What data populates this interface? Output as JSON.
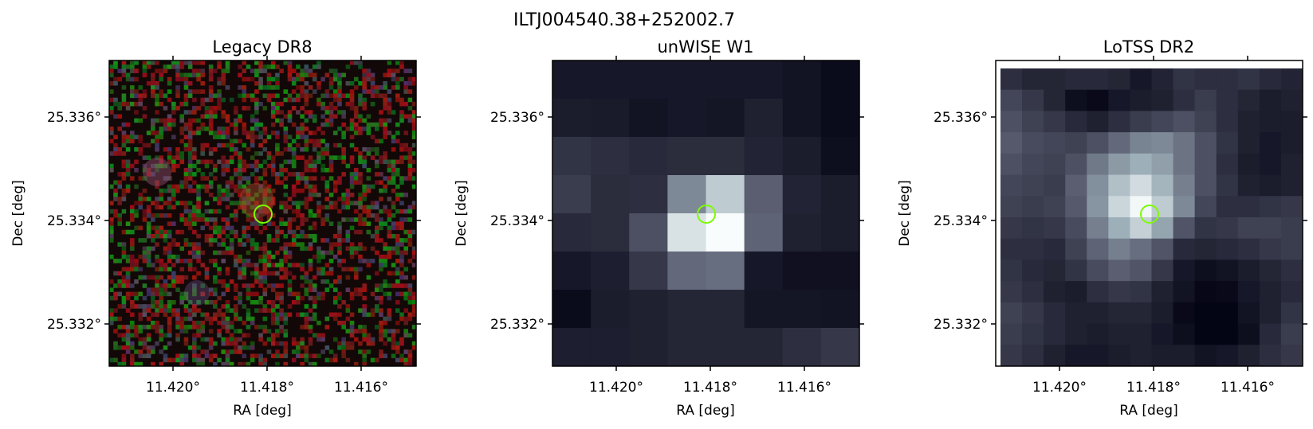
{
  "figure": {
    "title": "ILTJ004540.38+252002.7",
    "marker_color": "#7cfc00"
  },
  "panels": [
    {
      "title": "Legacy DR8",
      "xlabel": "RA [deg]",
      "ylabel": "Dec [deg]",
      "xticks": [
        "11.420°",
        "11.418°",
        "11.416°"
      ],
      "yticks": [
        "25.336°",
        "25.334°",
        "25.332°"
      ],
      "image_kind": "noise-rgb"
    },
    {
      "title": "unWISE W1",
      "xlabel": "RA [deg]",
      "ylabel": "Dec [deg]",
      "xticks": [
        "11.420°",
        "11.418°",
        "11.416°"
      ],
      "yticks": [
        "25.336°",
        "25.334°",
        "25.332°"
      ],
      "image_kind": "grid",
      "grid": [
        [
          0.1,
          0.1,
          0.1,
          0.1,
          0.1,
          0.1,
          0.08,
          0.05
        ],
        [
          0.12,
          0.11,
          0.08,
          0.1,
          0.09,
          0.14,
          0.08,
          0.05
        ],
        [
          0.22,
          0.2,
          0.18,
          0.19,
          0.19,
          0.15,
          0.12,
          0.06
        ],
        [
          0.26,
          0.19,
          0.2,
          0.56,
          0.8,
          0.4,
          0.15,
          0.12
        ],
        [
          0.18,
          0.19,
          0.34,
          0.88,
          0.98,
          0.42,
          0.14,
          0.12
        ],
        [
          0.1,
          0.13,
          0.24,
          0.44,
          0.46,
          0.1,
          0.07,
          0.07
        ],
        [
          0.05,
          0.12,
          0.14,
          0.16,
          0.16,
          0.09,
          0.09,
          0.08
        ],
        [
          0.13,
          0.13,
          0.14,
          0.16,
          0.16,
          0.16,
          0.2,
          0.24
        ]
      ]
    },
    {
      "title": "LoTSS DR2",
      "xlabel": "RA [deg]",
      "ylabel": "Dec [deg]",
      "xticks": [
        "11.420°",
        "11.418°",
        "11.416°"
      ],
      "yticks": [
        "25.336°",
        "25.334°",
        "25.332°"
      ],
      "image_kind": "grid",
      "grid": [
        [
          0.2,
          0.16,
          0.16,
          0.18,
          0.18,
          0.16,
          0.1,
          0.15,
          0.22,
          0.2,
          0.2,
          0.22,
          0.18,
          0.15
        ],
        [
          0.3,
          0.24,
          0.16,
          0.06,
          0.04,
          0.1,
          0.12,
          0.14,
          0.2,
          0.26,
          0.2,
          0.16,
          0.12,
          0.14
        ],
        [
          0.34,
          0.28,
          0.24,
          0.18,
          0.14,
          0.2,
          0.26,
          0.3,
          0.34,
          0.28,
          0.2,
          0.14,
          0.12,
          0.12
        ],
        [
          0.38,
          0.32,
          0.3,
          0.28,
          0.34,
          0.44,
          0.54,
          0.56,
          0.48,
          0.34,
          0.22,
          0.14,
          0.1,
          0.12
        ],
        [
          0.34,
          0.3,
          0.28,
          0.34,
          0.5,
          0.62,
          0.7,
          0.64,
          0.48,
          0.34,
          0.2,
          0.12,
          0.1,
          0.14
        ],
        [
          0.3,
          0.28,
          0.26,
          0.4,
          0.58,
          0.76,
          0.86,
          0.72,
          0.52,
          0.34,
          0.22,
          0.14,
          0.12,
          0.14
        ],
        [
          0.28,
          0.26,
          0.28,
          0.38,
          0.6,
          0.84,
          0.96,
          0.8,
          0.56,
          0.3,
          0.2,
          0.2,
          0.22,
          0.24
        ],
        [
          0.24,
          0.22,
          0.24,
          0.32,
          0.52,
          0.7,
          0.82,
          0.66,
          0.36,
          0.22,
          0.24,
          0.28,
          0.28,
          0.26
        ],
        [
          0.2,
          0.2,
          0.18,
          0.28,
          0.42,
          0.52,
          0.46,
          0.36,
          0.18,
          0.16,
          0.18,
          0.2,
          0.24,
          0.26
        ],
        [
          0.22,
          0.18,
          0.16,
          0.22,
          0.32,
          0.4,
          0.36,
          0.24,
          0.1,
          0.06,
          0.08,
          0.12,
          0.16,
          0.2
        ],
        [
          0.24,
          0.2,
          0.14,
          0.12,
          0.2,
          0.24,
          0.22,
          0.14,
          0.08,
          0.03,
          0.04,
          0.1,
          0.14,
          0.18
        ],
        [
          0.28,
          0.24,
          0.18,
          0.14,
          0.14,
          0.16,
          0.16,
          0.12,
          0.04,
          0.02,
          0.02,
          0.08,
          0.14,
          0.22
        ],
        [
          0.26,
          0.22,
          0.18,
          0.14,
          0.12,
          0.14,
          0.14,
          0.1,
          0.06,
          0.02,
          0.02,
          0.06,
          0.18,
          0.26
        ],
        [
          0.24,
          0.2,
          0.14,
          0.1,
          0.1,
          0.12,
          0.14,
          0.12,
          0.12,
          0.08,
          0.1,
          0.14,
          0.2,
          0.24
        ]
      ]
    }
  ]
}
